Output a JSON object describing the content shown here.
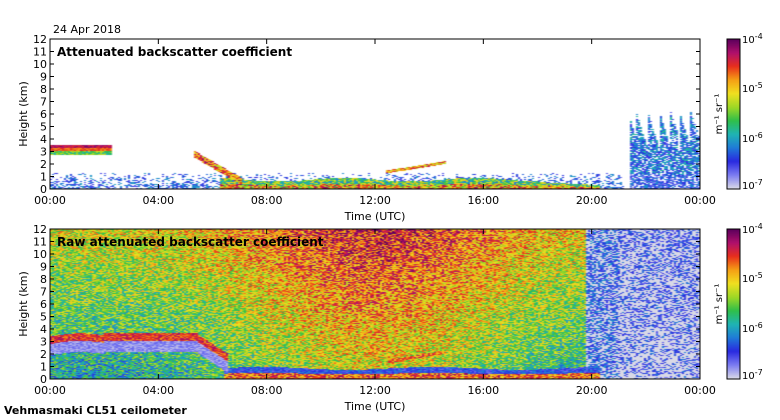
{
  "date_label": "24 Apr 2018",
  "footer_label": "Vehmasmaki CL51 ceilometer",
  "colors": {
    "scale": [
      "#d9d9e6",
      "#7b7bf2",
      "#2a2ae0",
      "#1f7bd8",
      "#1fb4b4",
      "#2fbf4a",
      "#9fd826",
      "#f0e020",
      "#f5a015",
      "#e8301c",
      "#b0106c",
      "#5c005c"
    ],
    "background": "#ffffff"
  },
  "chart_data": [
    {
      "type": "heatmap",
      "title": "Attenuated backscatter coefficient",
      "xlabel": "Time (UTC)",
      "ylabel": "Height (km)",
      "x_ticks": [
        "00:00",
        "04:00",
        "08:00",
        "12:00",
        "16:00",
        "20:00",
        "00:00"
      ],
      "x_range_hours": [
        0,
        24
      ],
      "y_ticks": [
        0,
        1,
        2,
        3,
        4,
        5,
        6,
        7,
        8,
        9,
        10,
        11,
        12
      ],
      "ylim": [
        0,
        12
      ],
      "colorbar": {
        "label": "m⁻¹ sr⁻¹",
        "scale": "log",
        "range": [
          1e-07,
          0.0001
        ],
        "ticks": [
          {
            "base": "10",
            "exp": "-4"
          },
          {
            "base": "10",
            "exp": "-5"
          },
          {
            "base": "10",
            "exp": "-6"
          },
          {
            "base": "10",
            "exp": "-7"
          }
        ]
      },
      "features": [
        {
          "name": "mid-level cloud layer",
          "time_hours": [
            0,
            2.3
          ],
          "height_km": [
            2.8,
            3.5
          ],
          "level": "high"
        },
        {
          "name": "descending cloud base",
          "time_hours": [
            5.3,
            7
          ],
          "height_km": [
            1,
            3
          ],
          "level": "high"
        },
        {
          "name": "boundary layer",
          "time_hours": [
            6.5,
            20
          ],
          "height_km": [
            0,
            0.9
          ],
          "level": "high"
        },
        {
          "name": "elevated layer",
          "time_hours": [
            12.5,
            14.5
          ],
          "height_km": [
            1.2,
            2.2
          ],
          "level": "medium"
        },
        {
          "name": "precipitation streaks",
          "time_hours": [
            21.4,
            24
          ],
          "height_km": [
            0,
            6.3
          ],
          "level": "medium"
        },
        {
          "name": "near-surface weak signal",
          "time_hours": [
            0,
            21
          ],
          "height_km": [
            0,
            1.2
          ],
          "level": "low"
        }
      ]
    },
    {
      "type": "heatmap",
      "title": "Raw attenuated backscatter coefficient",
      "xlabel": "Time (UTC)",
      "ylabel": "Height (km)",
      "x_ticks": [
        "00:00",
        "04:00",
        "08:00",
        "12:00",
        "16:00",
        "20:00",
        "00:00"
      ],
      "x_range_hours": [
        0,
        24
      ],
      "y_ticks": [
        0,
        1,
        2,
        3,
        4,
        5,
        6,
        7,
        8,
        9,
        10,
        11,
        12
      ],
      "ylim": [
        0,
        12
      ],
      "colorbar": {
        "label": "m⁻¹ sr⁻¹",
        "scale": "log",
        "range": [
          1e-07,
          0.0001
        ],
        "ticks": [
          {
            "base": "10",
            "exp": "-4"
          },
          {
            "base": "10",
            "exp": "-5"
          },
          {
            "base": "10",
            "exp": "-6"
          },
          {
            "base": "10",
            "exp": "-7"
          }
        ]
      },
      "features": [
        {
          "name": "daytime noise field",
          "time_hours": [
            0,
            19.8
          ],
          "height_km": [
            0,
            12
          ],
          "level": "medium-high"
        },
        {
          "name": "cloud layer",
          "time_hours": [
            0,
            6.5
          ],
          "height_km": [
            2.5,
            3.7
          ],
          "level": "high"
        },
        {
          "name": "boundary layer",
          "time_hours": [
            6.5,
            20
          ],
          "height_km": [
            0,
            1
          ],
          "level": "high"
        },
        {
          "name": "sparse noise",
          "time_hours": [
            19.8,
            21
          ],
          "height_km": [
            0,
            12
          ],
          "level": "low"
        },
        {
          "name": "night noise",
          "time_hours": [
            21,
            24
          ],
          "height_km": [
            0,
            12
          ],
          "level": "low"
        }
      ]
    }
  ]
}
